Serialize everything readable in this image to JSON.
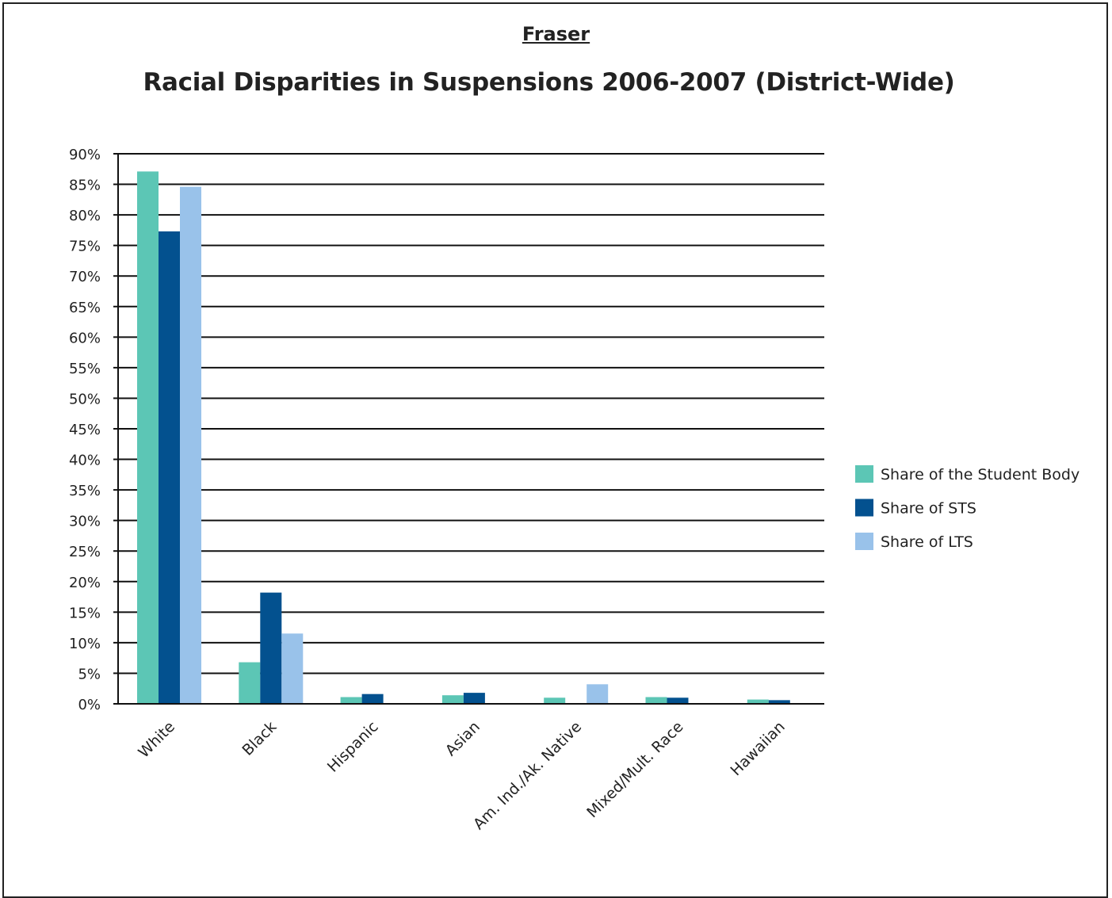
{
  "subtitle": "Fraser ",
  "title": "Racial Disparities in Suspensions 2006-2007 (District-Wide)",
  "colors": {
    "student_body": "#5cc6b5",
    "sts": "#03518f",
    "lts": "#99c2ea",
    "gridline": "#111111",
    "text": "#222222"
  },
  "chart_data": {
    "type": "bar",
    "title": "Racial Disparities in Suspensions 2006-2007 (District-Wide)",
    "subtitle": "Fraser ",
    "xlabel": "",
    "ylabel": "",
    "ylim": [
      0,
      90
    ],
    "y_ticks": [
      0,
      5,
      10,
      15,
      20,
      25,
      30,
      35,
      40,
      45,
      50,
      55,
      60,
      65,
      70,
      75,
      80,
      85,
      90
    ],
    "y_tick_labels": [
      "0%",
      "5%",
      "10%",
      "15%",
      "20%",
      "25%",
      "30%",
      "35%",
      "40%",
      "45%",
      "50%",
      "55%",
      "60%",
      "65%",
      "70%",
      "75%",
      "80%",
      "85%",
      "90%"
    ],
    "grid": true,
    "legend_position": "right",
    "categories": [
      "White",
      "Black",
      "Hispanic",
      "Asian",
      "Am. Ind./Ak. Native",
      "Mixed/Mult. Race",
      "Hawaiian"
    ],
    "series": [
      {
        "name": "Share of the Student Body",
        "color": "#5cc6b5",
        "values": [
          87.1,
          6.8,
          1.1,
          1.4,
          1.0,
          1.1,
          0.7
        ]
      },
      {
        "name": "Share of STS",
        "color": "#03518f",
        "values": [
          77.3,
          18.2,
          1.6,
          1.8,
          0,
          1.0,
          0.6
        ]
      },
      {
        "name": "Share of LTS",
        "color": "#99c2ea",
        "values": [
          84.6,
          11.5,
          0,
          0,
          3.2,
          0,
          0
        ]
      }
    ]
  }
}
